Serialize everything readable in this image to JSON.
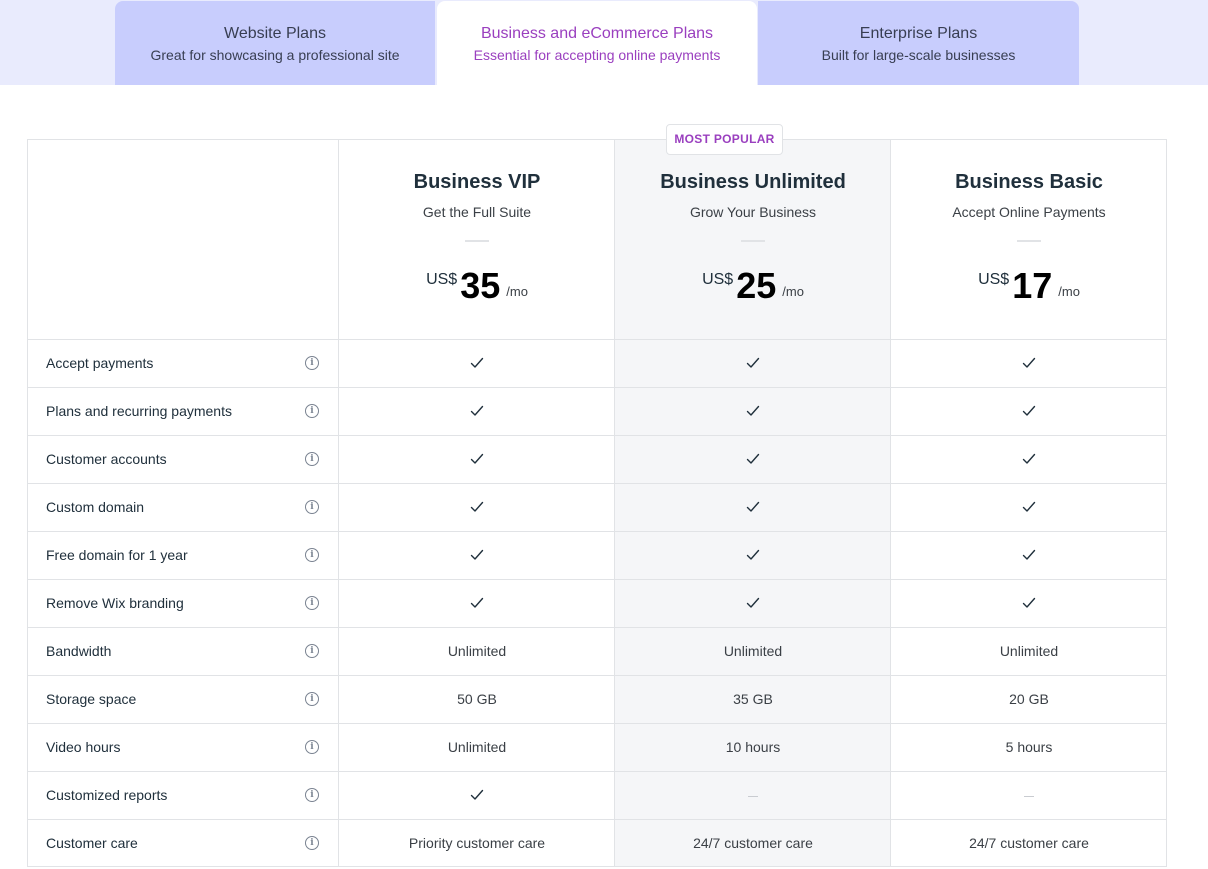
{
  "tabs": [
    {
      "title": "Website Plans",
      "subtitle": "Great for showcasing a professional site",
      "active": false
    },
    {
      "title": "Business and eCommerce Plans",
      "subtitle": "Essential for accepting online payments",
      "active": true
    },
    {
      "title": "Enterprise Plans",
      "subtitle": "Built for large-scale businesses",
      "active": false
    }
  ],
  "badge": "MOST POPULAR",
  "plans": [
    {
      "name": "Business VIP",
      "tagline": "Get the Full Suite",
      "currency": "US$",
      "price": "35",
      "period": "/mo"
    },
    {
      "name": "Business Unlimited",
      "tagline": "Grow Your Business",
      "currency": "US$",
      "price": "25",
      "period": "/mo"
    },
    {
      "name": "Business Basic",
      "tagline": "Accept Online Payments",
      "currency": "US$",
      "price": "17",
      "period": "/mo"
    }
  ],
  "features": [
    {
      "label": "Accept payments",
      "values": [
        "check",
        "check",
        "check"
      ]
    },
    {
      "label": "Plans and recurring payments",
      "values": [
        "check",
        "check",
        "check"
      ]
    },
    {
      "label": "Customer accounts",
      "values": [
        "check",
        "check",
        "check"
      ]
    },
    {
      "label": "Custom domain",
      "values": [
        "check",
        "check",
        "check"
      ]
    },
    {
      "label": "Free domain for 1 year",
      "values": [
        "check",
        "check",
        "check"
      ]
    },
    {
      "label": "Remove Wix branding",
      "values": [
        "check",
        "check",
        "check"
      ]
    },
    {
      "label": "Bandwidth",
      "values": [
        "Unlimited",
        "Unlimited",
        "Unlimited"
      ]
    },
    {
      "label": "Storage space",
      "values": [
        "50 GB",
        "35 GB",
        "20 GB"
      ]
    },
    {
      "label": "Video hours",
      "values": [
        "Unlimited",
        "10 hours",
        "5 hours"
      ]
    },
    {
      "label": "Customized reports",
      "values": [
        "check",
        "none",
        "none"
      ]
    },
    {
      "label": "Customer care",
      "values": [
        "Priority customer care",
        "24/7 customer care",
        "24/7 customer care"
      ]
    }
  ],
  "icons": {
    "check": "check-icon",
    "info": "info-icon",
    "none": "dash-icon"
  },
  "colors": {
    "accent": "#9a3fbf",
    "tab_inactive": "#c8cdfd",
    "tab_bar": "#e9ebfd",
    "highlight_column": "#f5f6f8"
  }
}
